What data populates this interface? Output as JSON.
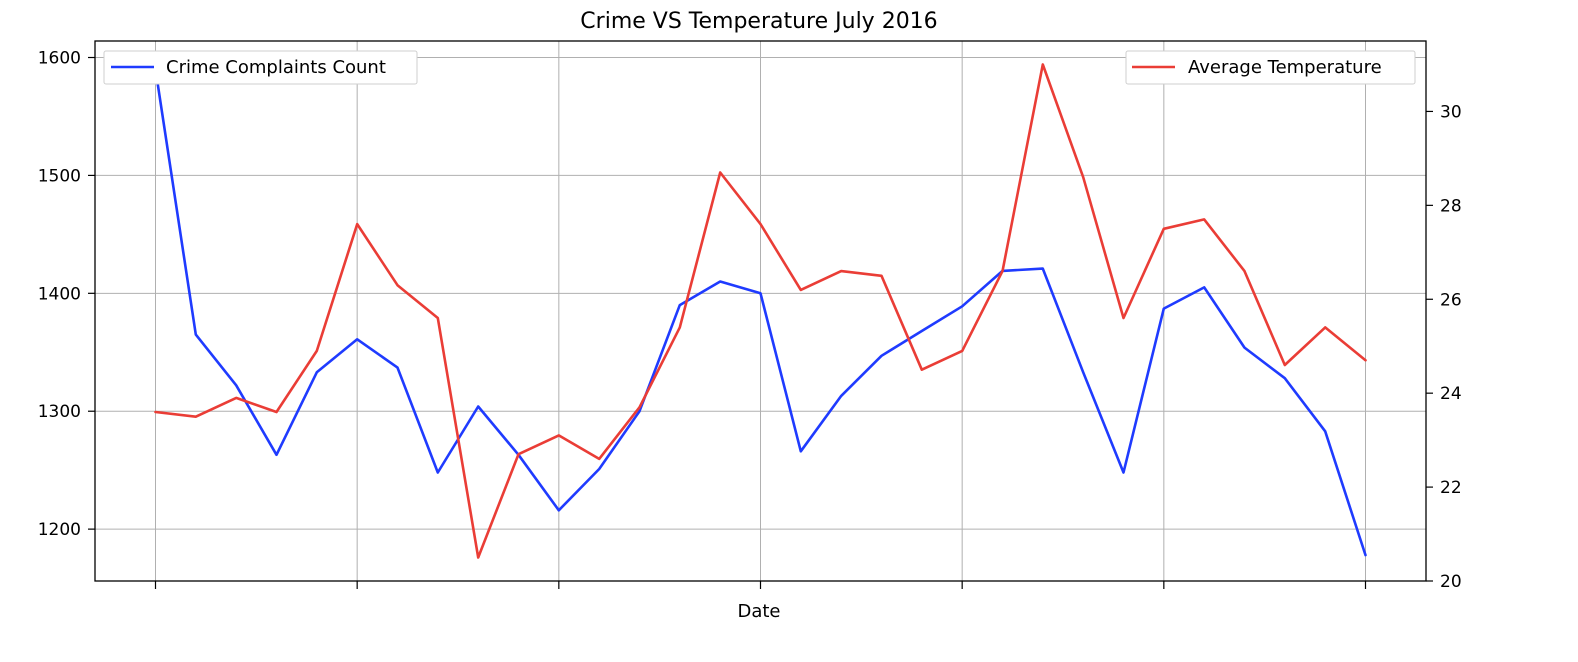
{
  "chart_data": {
    "type": "line",
    "title": "Crime  VS Temperature July 2016",
    "xlabel": "Date",
    "ylabel_left": "",
    "ylabel_right": "",
    "x": [
      1,
      2,
      3,
      4,
      5,
      6,
      7,
      8,
      9,
      10,
      11,
      12,
      13,
      14,
      15,
      16,
      17,
      18,
      19,
      20,
      21,
      22,
      23,
      24,
      25,
      26,
      27,
      28,
      29,
      30,
      31
    ],
    "xlim": [
      -0.5,
      32.5
    ],
    "xticks": [
      1,
      6,
      11,
      16,
      21,
      26,
      31
    ],
    "ylim_left": [
      1156,
      1614
    ],
    "yticks_left": [
      1200,
      1300,
      1400,
      1500,
      1600
    ],
    "ylim_right": [
      20,
      31.5
    ],
    "yticks_right": [
      20,
      22,
      24,
      26,
      28,
      30
    ],
    "grid": true,
    "series": [
      {
        "name": "Crime Complaints Count",
        "axis": "left",
        "color": "#1f3bff",
        "legend_position": "upper-left",
        "values": [
          1590,
          1365,
          1322,
          1263,
          1333,
          1361,
          1337,
          1248,
          1304,
          1263,
          1216,
          1251,
          1300,
          1390,
          1410,
          1400,
          1266,
          1313,
          1347,
          1368,
          1389,
          1419,
          1421,
          1333,
          1248,
          1387,
          1405,
          1354,
          1328,
          1283,
          1178
        ]
      },
      {
        "name": "Average Temperature",
        "axis": "right",
        "color": "#ea3d36",
        "legend_position": "upper-right",
        "values": [
          23.6,
          23.5,
          23.9,
          23.6,
          24.9,
          27.6,
          26.3,
          25.6,
          20.5,
          22.7,
          23.1,
          22.6,
          23.7,
          25.4,
          28.7,
          27.6,
          26.2,
          26.6,
          26.5,
          24.5,
          24.9,
          26.6,
          31.0,
          28.6,
          25.6,
          27.5,
          27.7,
          26.6,
          24.6,
          25.4,
          24.7
        ]
      }
    ]
  }
}
